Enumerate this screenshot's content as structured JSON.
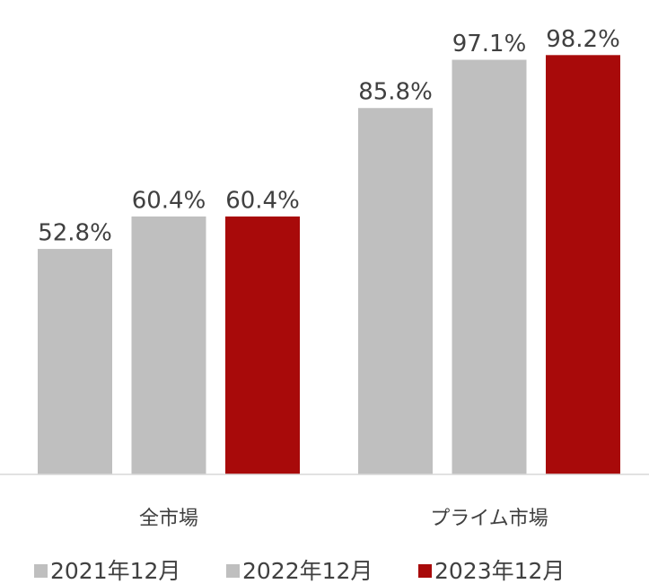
{
  "chart_data": {
    "type": "bar",
    "categories": [
      "全市場",
      "プライム市場"
    ],
    "series": [
      {
        "name": "2021年12月",
        "color": "#bfbfbf",
        "values": [
          52.8,
          85.8
        ],
        "value_labels": [
          "52.8%",
          "85.8%"
        ]
      },
      {
        "name": "2022年12月",
        "color": "#bfbfbf",
        "values": [
          60.4,
          97.1
        ],
        "value_labels": [
          "60.4%",
          "97.1%"
        ]
      },
      {
        "name": "2023年12月",
        "color": "#a80a0a",
        "values": [
          60.4,
          98.2
        ],
        "value_labels": [
          "60.4%",
          "98.2%"
        ]
      }
    ],
    "ylim": [
      0,
      105
    ],
    "legend": "bottom"
  }
}
